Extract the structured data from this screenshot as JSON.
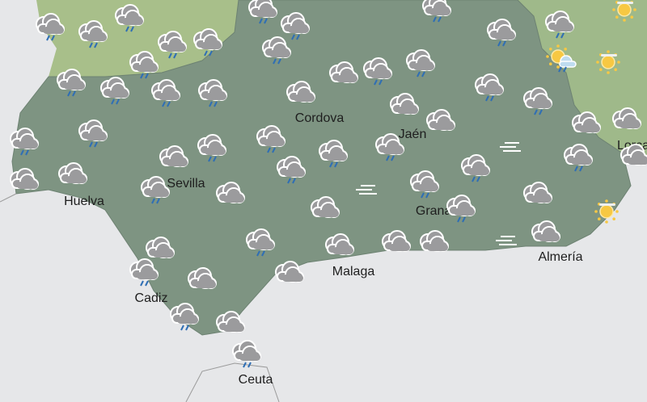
{
  "map": {
    "colors": {
      "sea": "#e6e7e9",
      "region": "#7e9482",
      "north_land": "#a8bf8a",
      "east_land": "#9fb98a",
      "cloud": "#9b9b9d",
      "cloud_outline": "#ffffff",
      "rain": "#2f6fb5",
      "sun": "#f7c843"
    },
    "cities": [
      {
        "name": "Cordova"
      },
      {
        "name": "Jaén"
      },
      {
        "name": "Sevilla"
      },
      {
        "name": "Huelva"
      },
      {
        "name": "Granada"
      },
      {
        "name": "Almería"
      },
      {
        "name": "Malaga"
      },
      {
        "name": "Cadiz"
      },
      {
        "name": "Ceuta"
      },
      {
        "name": "Lorca"
      }
    ],
    "icons": [
      "rain-cloud",
      "rain-cloud",
      "rain-cloud",
      "rain-cloud",
      "rain-cloud",
      "rain-cloud",
      "rain-cloud",
      "rain-cloud",
      "rain-cloud",
      "rain-cloud",
      "rain-cloud",
      "rain-cloud",
      "sun-cloud-rain",
      "sun",
      "sun",
      "rain-cloud",
      "rain-cloud",
      "rain-cloud",
      "rain-cloud",
      "cloud",
      "cloud",
      "rain-cloud",
      "rain-cloud",
      "rain-cloud",
      "rain-cloud",
      "cloud",
      "cloud",
      "rain-cloud",
      "rain-cloud",
      "cloud",
      "cloud",
      "cloud",
      "rain-cloud",
      "rain-cloud",
      "rain-cloud",
      "rain-cloud",
      "rain-cloud",
      "rain-cloud",
      "rain-cloud",
      "cloud",
      "cloud",
      "cloud",
      "rain-cloud",
      "cloud",
      "cloud",
      "rain-cloud",
      "rain-cloud",
      "cloud",
      "sun",
      "fog",
      "fog",
      "fog",
      "cloud",
      "rain-cloud",
      "cloud",
      "cloud",
      "cloud",
      "cloud",
      "rain-cloud",
      "cloud",
      "cloud",
      "rain-cloud",
      "cloud",
      "rain-cloud"
    ]
  }
}
